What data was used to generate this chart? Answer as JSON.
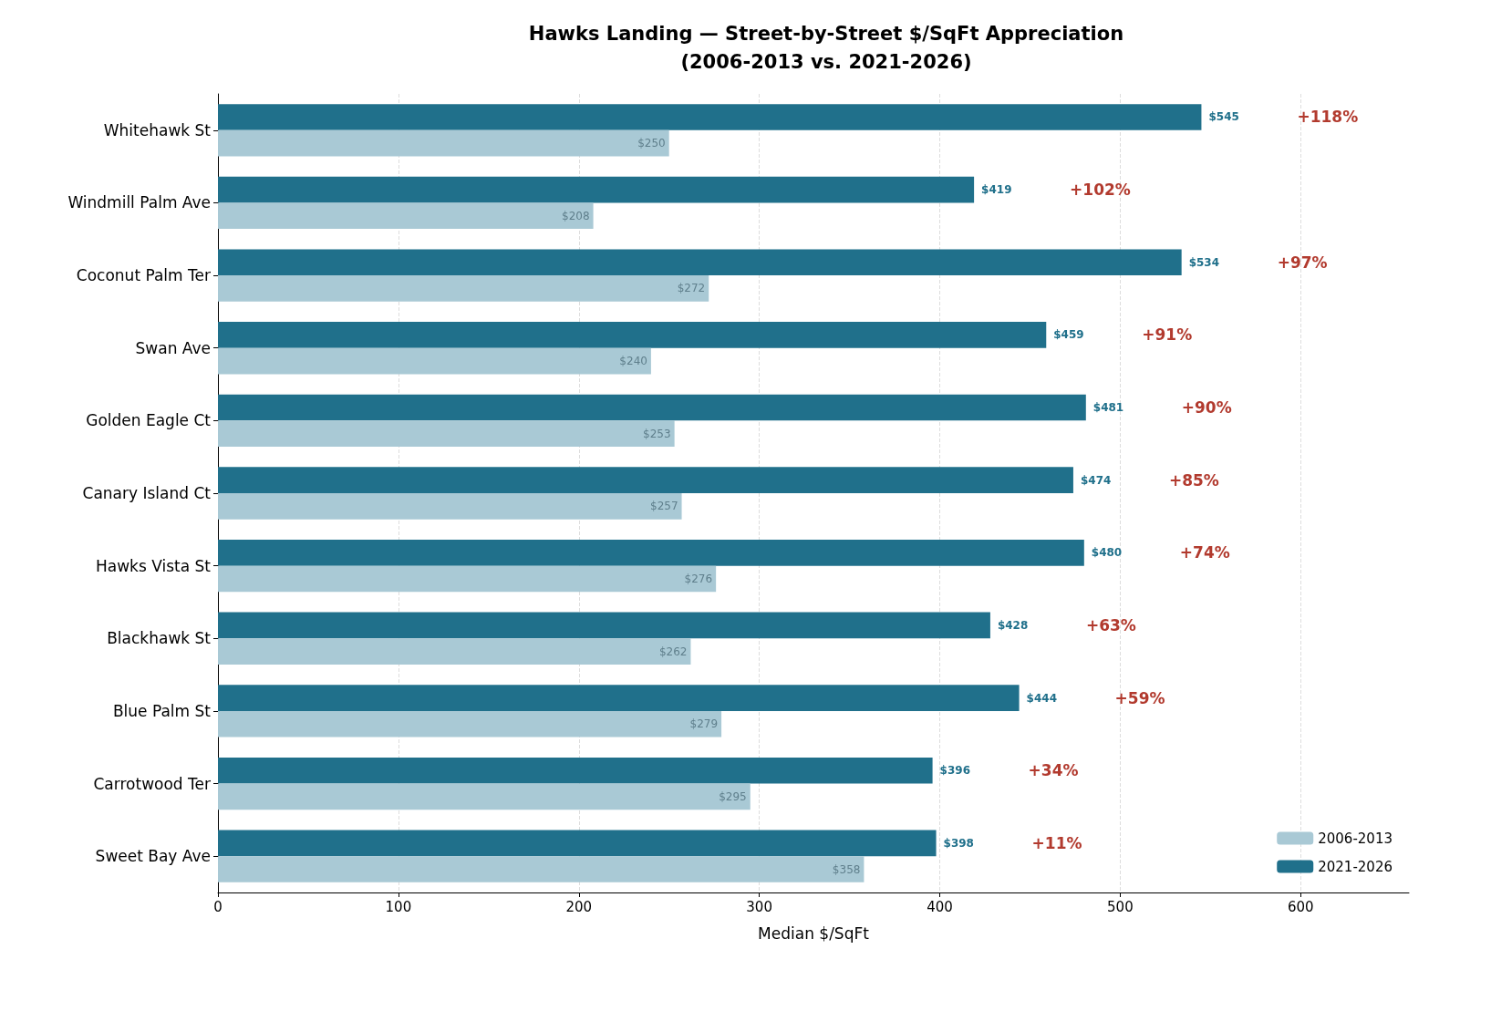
{
  "chart_data": {
    "type": "bar",
    "orientation": "horizontal",
    "title": "Hawks Landing — Street-by-Street $/SqFt Appreciation\n(2006-2013 vs. 2021-2026)",
    "xlabel": "Median $/SqFt",
    "categories": [
      "Whitehawk St",
      "Windmill Palm Ave",
      "Coconut Palm Ter",
      "Swan Ave",
      "Golden Eagle Ct",
      "Canary Island Ct",
      "Hawks Vista St",
      "Blackhawk St",
      "Blue Palm St",
      "Carrotwood Ter",
      "Sweet Bay Ave"
    ],
    "series": [
      {
        "name": "2006-2013",
        "color": "#a9c9d5",
        "values": [
          250,
          208,
          272,
          240,
          253,
          257,
          276,
          262,
          279,
          295,
          358
        ],
        "value_labels": [
          "$250",
          "$208",
          "$272",
          "$240",
          "$253",
          "$257",
          "$276",
          "$262",
          "$279",
          "$295",
          "$358"
        ]
      },
      {
        "name": "2021-2026",
        "color": "#20708b",
        "values": [
          545,
          419,
          534,
          459,
          481,
          474,
          480,
          428,
          444,
          396,
          398
        ],
        "value_labels": [
          "$545",
          "$419",
          "$534",
          "$459",
          "$481",
          "$474",
          "$480",
          "$428",
          "$444",
          "$396",
          "$398"
        ]
      }
    ],
    "annotations": [
      "+118%",
      "+102%",
      "+97%",
      "+91%",
      "+90%",
      "+85%",
      "+74%",
      "+63%",
      "+59%",
      "+34%",
      "+11%"
    ],
    "xlim": [
      0,
      660
    ],
    "xticks": [
      0,
      100,
      200,
      300,
      400,
      500,
      600
    ],
    "grid": "x",
    "legend": "bottom right"
  }
}
